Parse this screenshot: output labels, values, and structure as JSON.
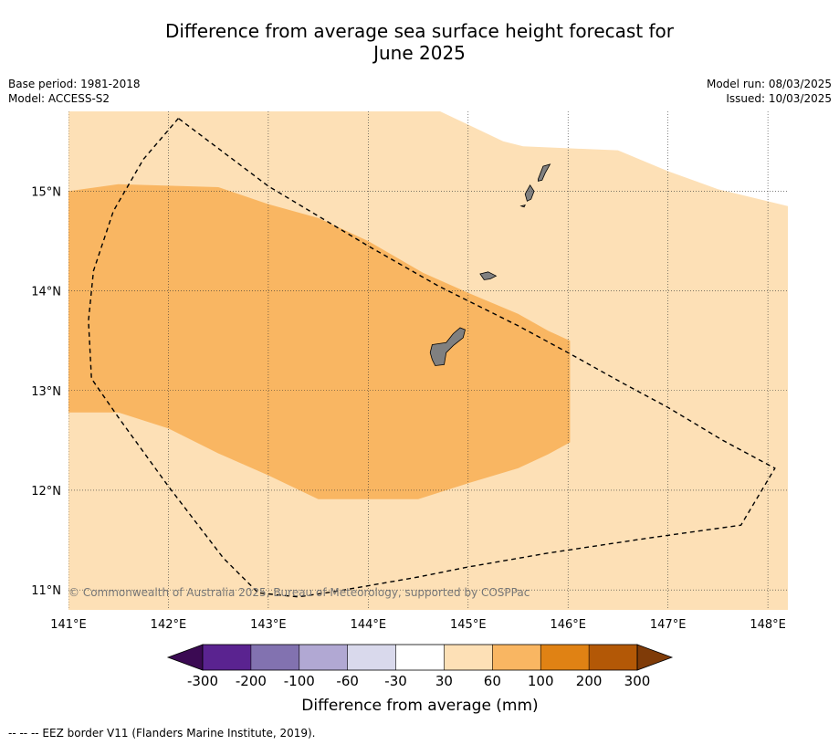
{
  "title_line1": "Difference from average sea surface height forecast for",
  "title_line2": "June 2025",
  "meta_left": [
    "Base period: 1981-2018",
    "Model: ACCESS-S2"
  ],
  "meta_right": [
    "Model run: 08/03/2025",
    "Issued: 10/03/2025"
  ],
  "copyright": "© Commonwealth of Australia 2025, Bureau of Meteorology, supported by COSPPac",
  "footer": "--  --  -- EEZ border V11 (Flanders Marine Institute, 2019).",
  "chart_data": {
    "type": "heatmap",
    "map_extent": {
      "lon": [
        141.0,
        148.2
      ],
      "lat": [
        10.8,
        15.8
      ]
    },
    "x_ticks": [
      141,
      142,
      143,
      144,
      145,
      146,
      147,
      148
    ],
    "x_tick_labels": [
      "141°E",
      "142°E",
      "143°E",
      "144°E",
      "145°E",
      "146°E",
      "147°E",
      "148°E"
    ],
    "y_ticks": [
      15,
      14,
      13,
      12,
      11
    ],
    "y_tick_labels": [
      "15°N",
      "14°N",
      "13°N",
      "12°N",
      "11°N"
    ],
    "grid": true,
    "colorbar": {
      "label": "Difference from average (mm)",
      "tick_labels": [
        "-300",
        "-200",
        "-100",
        "-60",
        "-30",
        "30",
        "60",
        "100",
        "200",
        "300"
      ],
      "colors": [
        "#3b0a53",
        "#5a2390",
        "#8272b0",
        "#b1a8d3",
        "#d9d9ec",
        "#ffffff",
        "#fde0b6",
        "#f9b662",
        "#e08214",
        "#b35806",
        "#7f3b08"
      ]
    },
    "regions": [
      {
        "category": "30 to 60",
        "color": "#fde0b6",
        "polygon": [
          [
            141.0,
            10.8
          ],
          [
            141.0,
            15.8
          ],
          [
            144.72,
            15.8
          ],
          [
            145.35,
            15.5
          ],
          [
            145.55,
            15.45
          ],
          [
            146.0,
            15.43
          ],
          [
            146.5,
            15.41
          ],
          [
            147.0,
            15.2
          ],
          [
            147.5,
            15.02
          ],
          [
            148.2,
            14.85
          ],
          [
            148.2,
            10.8
          ]
        ]
      },
      {
        "category": "60 to 100",
        "color": "#f9b662",
        "polygon": [
          [
            141.0,
            15.0
          ],
          [
            141.5,
            15.07
          ],
          [
            142.5,
            15.04
          ],
          [
            143.0,
            14.87
          ],
          [
            143.5,
            14.73
          ],
          [
            144.0,
            14.5
          ],
          [
            144.55,
            14.18
          ],
          [
            145.0,
            13.98
          ],
          [
            145.5,
            13.77
          ],
          [
            145.8,
            13.6
          ],
          [
            146.02,
            13.5
          ],
          [
            146.02,
            12.48
          ],
          [
            145.8,
            12.36
          ],
          [
            145.5,
            12.22
          ],
          [
            145.0,
            12.07
          ],
          [
            144.5,
            11.91
          ],
          [
            144.0,
            11.91
          ],
          [
            143.5,
            11.91
          ],
          [
            143.0,
            12.15
          ],
          [
            142.5,
            12.37
          ],
          [
            142.0,
            12.62
          ],
          [
            141.5,
            12.78
          ],
          [
            141.0,
            12.78
          ]
        ]
      }
    ],
    "land": [
      {
        "name": "Guam",
        "polygon": [
          [
            144.64,
            13.46
          ],
          [
            144.78,
            13.48
          ],
          [
            144.85,
            13.57
          ],
          [
            144.92,
            13.63
          ],
          [
            144.97,
            13.61
          ],
          [
            144.95,
            13.53
          ],
          [
            144.85,
            13.45
          ],
          [
            144.78,
            13.38
          ],
          [
            144.76,
            13.26
          ],
          [
            144.67,
            13.25
          ],
          [
            144.64,
            13.31
          ],
          [
            144.62,
            13.38
          ]
        ]
      },
      {
        "name": "Rota",
        "polygon": [
          [
            145.12,
            14.17
          ],
          [
            145.2,
            14.19
          ],
          [
            145.28,
            14.15
          ],
          [
            145.22,
            14.12
          ],
          [
            145.16,
            14.11
          ]
        ]
      },
      {
        "name": "Tinian",
        "polygon": [
          [
            145.57,
            14.97
          ],
          [
            145.62,
            15.06
          ],
          [
            145.66,
            15.0
          ],
          [
            145.63,
            14.92
          ],
          [
            145.59,
            14.9
          ]
        ]
      },
      {
        "name": "Saipan",
        "polygon": [
          [
            145.7,
            15.12
          ],
          [
            145.75,
            15.25
          ],
          [
            145.82,
            15.27
          ],
          [
            145.77,
            15.18
          ],
          [
            145.74,
            15.11
          ],
          [
            145.7,
            15.1
          ]
        ]
      },
      {
        "name": "Aguijan",
        "polygon": [
          [
            145.53,
            14.85
          ],
          [
            145.57,
            14.86
          ],
          [
            145.56,
            14.84
          ]
        ]
      }
    ],
    "eez_border": [
      [
        142.1,
        15.73
      ],
      [
        141.75,
        15.32
      ],
      [
        141.45,
        14.8
      ],
      [
        141.25,
        14.2
      ],
      [
        141.2,
        13.7
      ],
      [
        141.23,
        13.12
      ],
      [
        141.5,
        12.73
      ],
      [
        142.0,
        12.04
      ],
      [
        142.55,
        11.32
      ],
      [
        142.9,
        10.97
      ],
      [
        143.3,
        10.93
      ],
      [
        143.7,
        10.99
      ],
      [
        144.5,
        11.13
      ],
      [
        145.0,
        11.23
      ],
      [
        145.8,
        11.37
      ],
      [
        146.8,
        11.52
      ],
      [
        147.73,
        11.65
      ],
      [
        148.07,
        12.22
      ],
      [
        147.55,
        12.5
      ],
      [
        147.0,
        12.83
      ],
      [
        146.5,
        13.1
      ],
      [
        146.0,
        13.38
      ],
      [
        145.5,
        13.65
      ],
      [
        144.7,
        14.05
      ],
      [
        144.0,
        14.45
      ],
      [
        143.0,
        15.05
      ],
      [
        142.1,
        15.73
      ]
    ]
  }
}
